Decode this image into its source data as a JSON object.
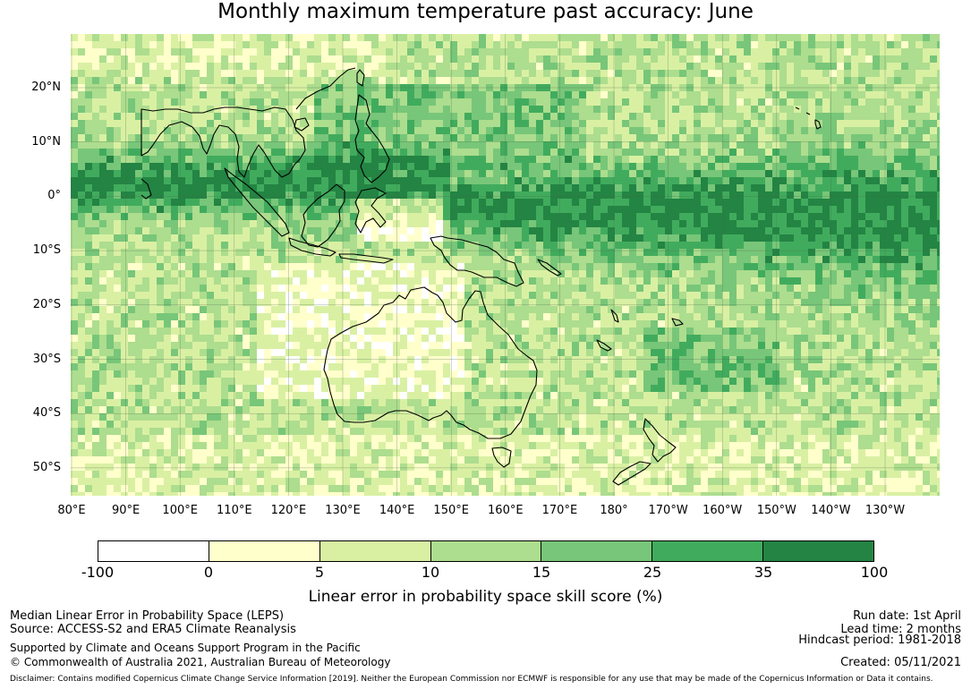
{
  "title": "Monthly maximum temperature past accuracy: June",
  "map": {
    "lat_labels": [
      "20°N",
      "10°N",
      "0°",
      "10°S",
      "20°S",
      "30°S",
      "40°S",
      "50°S"
    ],
    "lon_labels": [
      "80°E",
      "90°E",
      "100°E",
      "110°E",
      "120°E",
      "130°E",
      "140°E",
      "150°E",
      "160°E",
      "170°E",
      "180°",
      "170°W",
      "160°W",
      "150°W",
      "140°W",
      "130°W"
    ]
  },
  "colorbar": {
    "ticks": [
      "-100",
      "0",
      "5",
      "10",
      "15",
      "25",
      "35",
      "100"
    ],
    "colors": [
      "#ffffff",
      "#ffffcc",
      "#d9f0a3",
      "#addd8e",
      "#78c679",
      "#41ab5d",
      "#238443"
    ],
    "label": "Linear error in probability space skill score (%)"
  },
  "footer": {
    "left": [
      "Median Linear Error in Probability Space (LEPS)",
      "Source: ACCESS-S2 and ERA5 Climate Reanalysis",
      "Supported by Climate and Oceans Support Program in the Pacific",
      "© Commonwealth of Australia 2021, Australian Bureau of Meteorology"
    ],
    "right": [
      "Run date: 1st April",
      "Lead time: 2 months",
      "Hindcast period: 1981-2018",
      "Created: 05/11/2021"
    ],
    "disclaimer": "Disclaimer: Contains modified Copernicus Climate Change Service Information [2019]. Neither the European Commission nor ECMWF is responsible for any use that may be made of the Copernicus Information or Data it contains."
  }
}
